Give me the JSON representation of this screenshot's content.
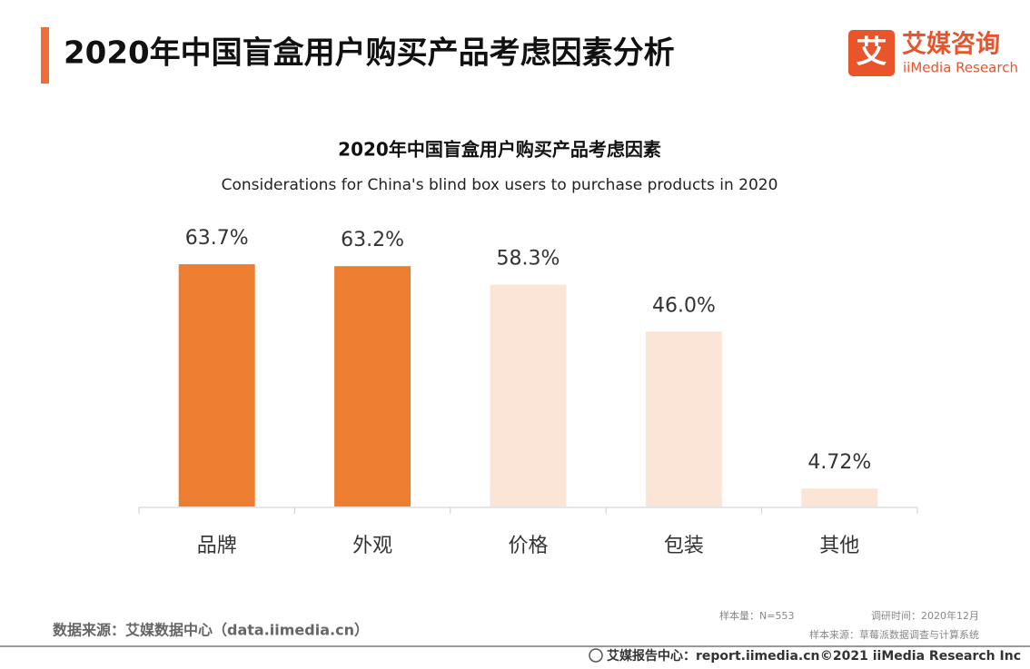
{
  "header": {
    "title": "2020年中国盲盒用户购买产品考虑因素分析",
    "logo_cn": "艾媒咨询",
    "logo_en": "iiMedia Research",
    "logo_mark": "艾"
  },
  "chart_data": {
    "type": "bar",
    "title": "2020年中国盲盒用户购买产品考虑因素",
    "subtitle": "Considerations for China's blind box users to purchase products in 2020",
    "categories": [
      "品牌",
      "外观",
      "价格",
      "包装",
      "其他"
    ],
    "values": [
      63.7,
      63.2,
      58.3,
      46.0,
      4.72
    ],
    "value_labels": [
      "63.7%",
      "63.2%",
      "58.3%",
      "46.0%",
      "4.72%"
    ],
    "colors": [
      "#ED7D31",
      "#ED7D31",
      "#FBE5D6",
      "#FBE5D6",
      "#FBE5D6"
    ]
  },
  "footer": {
    "source": "数据来源：艾媒数据中心（data.iimedia.cn）",
    "sample_size": "样本量：N=553",
    "survey_time": "调研时间：2020年12月",
    "sample_source": "样本来源：草莓派数据调查与计算系统",
    "report_center": "艾媒报告中心：report.iimedia.cn",
    "copyright": "©2021  iiMedia Research  Inc"
  }
}
